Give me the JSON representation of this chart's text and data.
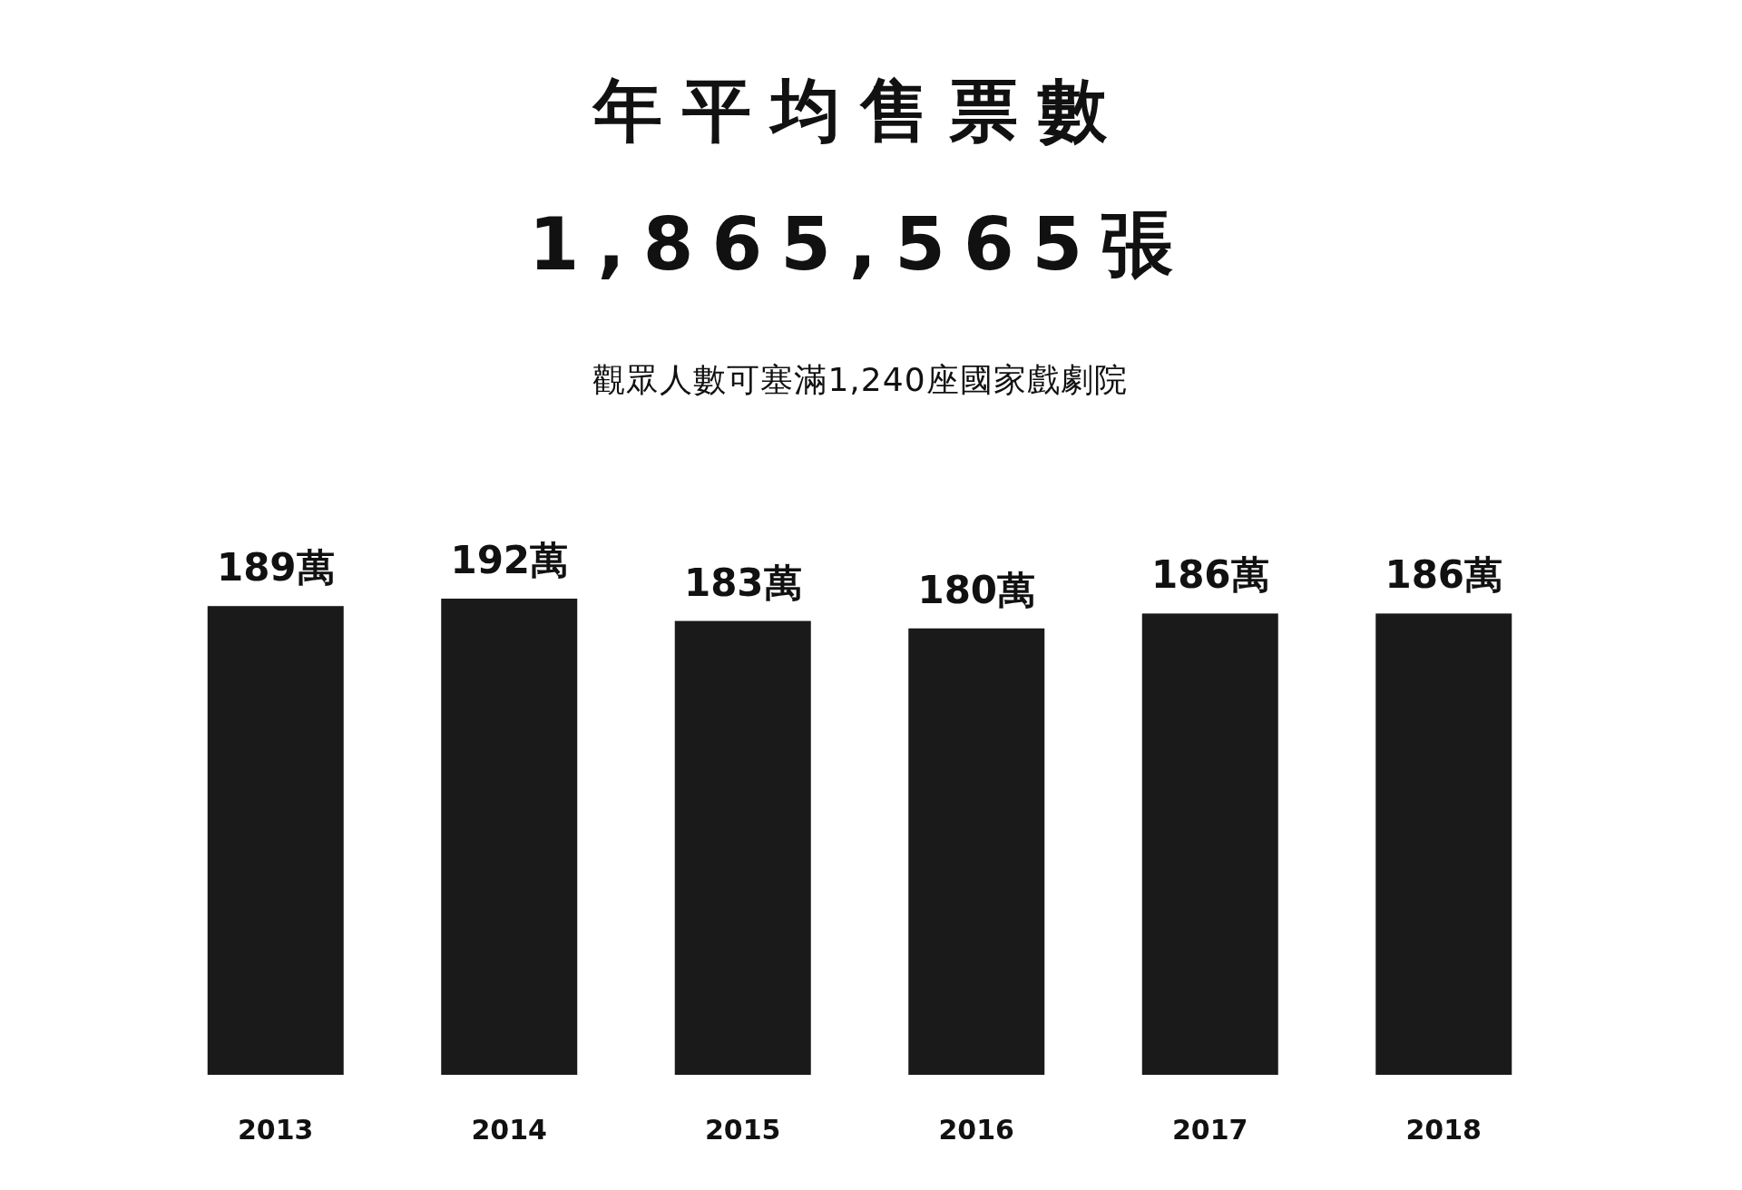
{
  "chart_data": {
    "type": "bar",
    "title": "年平均售票數",
    "subtitle": "1,865,565張",
    "annotations": [
      "觀眾人數可塞滿1,240座國家戲劇院"
    ],
    "categories": [
      "2013",
      "2014",
      "2015",
      "2016",
      "2017",
      "2018"
    ],
    "values": [
      189,
      192,
      183,
      180,
      186,
      186
    ],
    "value_labels": [
      "189萬",
      "192萬",
      "183萬",
      "180萬",
      "186萬",
      "186萬"
    ],
    "color": "#1a1a1a",
    "tick_labels": "x"
  }
}
